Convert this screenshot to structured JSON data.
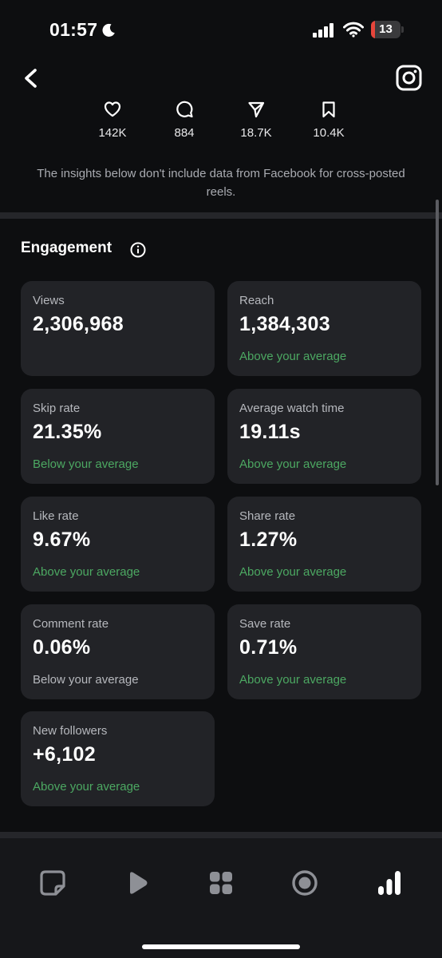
{
  "status_bar": {
    "time": "01:57",
    "battery": "13",
    "battery_level_percent": 13
  },
  "header": {
    "back_icon": "chevron-left-icon",
    "right_icon": "instagram-icon"
  },
  "stats": [
    {
      "icon": "heart-icon",
      "value": "142K"
    },
    {
      "icon": "comment-icon",
      "value": "884"
    },
    {
      "icon": "send-icon",
      "value": "18.7K"
    },
    {
      "icon": "bookmark-icon",
      "value": "10.4K"
    }
  ],
  "disclaimer": "The insights below don't include data from Facebook for cross-posted reels.",
  "engagement": {
    "title": "Engagement",
    "cards": [
      {
        "label": "Views",
        "value": "2,306,968",
        "note": ""
      },
      {
        "label": "Reach",
        "value": "1,384,303",
        "note": "Above your average"
      },
      {
        "label": "Skip rate",
        "value": "21.35%",
        "note": "Below your average"
      },
      {
        "label": "Average watch time",
        "value": "19.11s",
        "note": "Above your average"
      },
      {
        "label": "Like rate",
        "value": "9.67%",
        "note": "Above your average"
      },
      {
        "label": "Share rate",
        "value": "1.27%",
        "note": "Above your average"
      },
      {
        "label": "Comment rate",
        "value": "0.06%",
        "note": "Below your average"
      },
      {
        "label": "Save rate",
        "value": "0.71%",
        "note": "Above your average"
      },
      {
        "label": "New followers",
        "value": "+6,102",
        "note": "Above your average"
      }
    ]
  },
  "bottom_nav": [
    {
      "icon": "post-icon",
      "active": false
    },
    {
      "icon": "play-icon",
      "active": false
    },
    {
      "icon": "grid-icon",
      "active": false
    },
    {
      "icon": "record-icon",
      "active": false
    },
    {
      "icon": "insights-bar-chart-icon",
      "active": true
    }
  ],
  "colors": {
    "background": "#0d0e10",
    "card": "#222327",
    "green_note": "#4ca862",
    "gray_note": "#b6b8bd",
    "battery_low": "#e5453b"
  }
}
